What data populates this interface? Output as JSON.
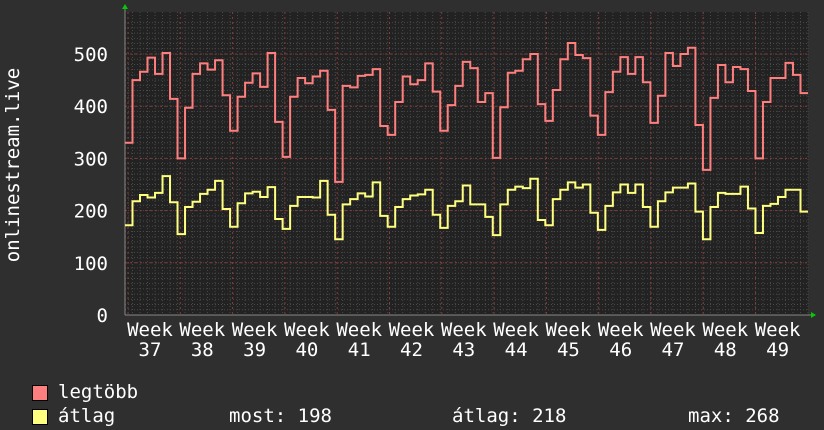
{
  "chart_data": {
    "type": "line",
    "title": "",
    "ylabel": "onlinestream.live",
    "xlabel": "",
    "ylim": [
      0,
      560
    ],
    "yticks": [
      0,
      100,
      200,
      300,
      400,
      500
    ],
    "xtick_labels": [
      "Week 37",
      "Week 38",
      "Week 39",
      "Week 40",
      "Week 41",
      "Week 42",
      "Week 43",
      "Week 44",
      "Week 45",
      "Week 46",
      "Week 47",
      "Week 48",
      "Week 49"
    ],
    "grid": true,
    "legend_placement": "bottom-left",
    "series": [
      {
        "name": "legtöbb",
        "color": "#ff7f7f",
        "values": [
          330,
          450,
          466,
          493,
          462,
          502,
          414,
          300,
          397,
          462,
          482,
          470,
          488,
          421,
          353,
          418,
          445,
          463,
          437,
          502,
          370,
          303,
          418,
          454,
          444,
          457,
          468,
          393,
          255,
          439,
          436,
          458,
          460,
          471,
          362,
          345,
          408,
          457,
          442,
          450,
          482,
          428,
          353,
          402,
          439,
          485,
          473,
          408,
          425,
          301,
          398,
          464,
          468,
          490,
          500,
          404,
          372,
          431,
          490,
          521,
          498,
          492,
          382,
          345,
          427,
          466,
          494,
          462,
          494,
          446,
          368,
          420,
          502,
          477,
          500,
          512,
          364,
          278,
          416,
          479,
          446,
          475,
          471,
          429,
          300,
          408,
          454,
          454,
          483,
          460,
          425
        ]
      },
      {
        "name": "átlag",
        "color": "#ffff7f",
        "values": [
          172,
          218,
          230,
          225,
          234,
          266,
          216,
          155,
          207,
          217,
          232,
          240,
          257,
          203,
          169,
          214,
          233,
          236,
          226,
          245,
          184,
          165,
          209,
          226,
          226,
          225,
          257,
          192,
          145,
          212,
          222,
          233,
          227,
          254,
          190,
          169,
          207,
          222,
          229,
          231,
          240,
          192,
          167,
          209,
          218,
          248,
          212,
          212,
          188,
          153,
          212,
          240,
          246,
          243,
          261,
          182,
          172,
          222,
          240,
          254,
          244,
          250,
          196,
          163,
          209,
          235,
          250,
          234,
          250,
          207,
          169,
          218,
          235,
          244,
          244,
          252,
          198,
          145,
          207,
          234,
          232,
          232,
          246,
          204,
          157,
          209,
          213,
          226,
          240,
          240,
          198
        ]
      }
    ]
  },
  "legend": {
    "max_label": "legtöbb",
    "avg_label": "átlag",
    "most": "most: 198",
    "atlag": "átlag: 218",
    "max": "max: 268"
  },
  "colors": {
    "background": "#2f2f2f",
    "plot": "#222222",
    "major_grid": "#8a3a3a",
    "minor_grid": "#4a4a4a",
    "axis_arrow": "#00cc00"
  }
}
